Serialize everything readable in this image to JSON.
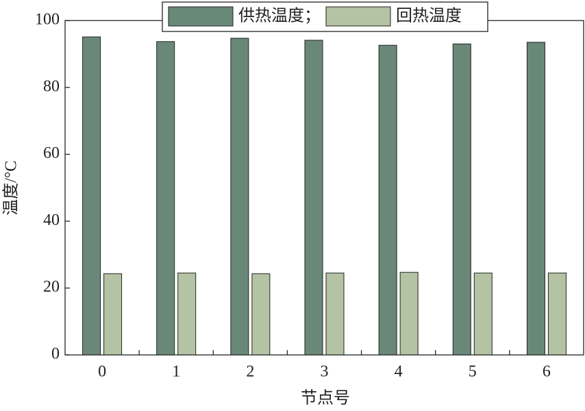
{
  "chart_data": {
    "type": "bar",
    "x_label": "节点号",
    "y_label": "温度/°C",
    "categories": [
      "0",
      "1",
      "2",
      "3",
      "4",
      "5",
      "6"
    ],
    "series": [
      {
        "name": "供热温度；",
        "color": "#6a8878",
        "values": [
          95.1,
          93.7,
          94.7,
          94.1,
          92.6,
          93.0,
          93.5
        ]
      },
      {
        "name": "回热温度",
        "color": "#b3c3a3",
        "values": [
          24.3,
          24.5,
          24.3,
          24.5,
          24.7,
          24.5,
          24.5
        ]
      }
    ],
    "ylim": [
      0,
      100
    ],
    "yticks": [
      0,
      20,
      40,
      60,
      80,
      100
    ],
    "legend": "top"
  }
}
